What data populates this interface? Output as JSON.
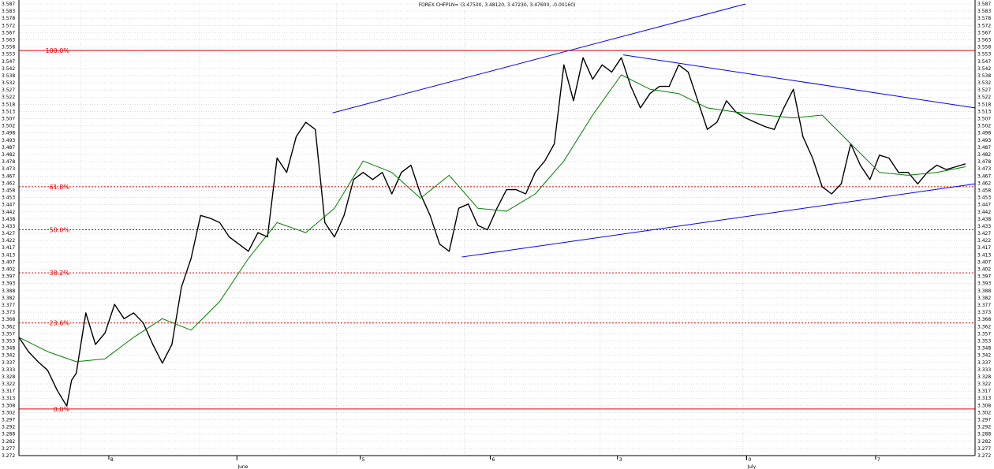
{
  "chart_data": {
    "type": "line",
    "title": "FOREX CHFPLN= (3.47500, 3.48120, 3.47230, 3.47600, -0.00160)",
    "xlabel": "",
    "ylabel": "",
    "ylim": [
      3.2725,
      3.5875
    ],
    "y_tick_step": 0.005,
    "grid": true,
    "x_tick_labels": [
      "June",
      "July"
    ],
    "x_minor_tick_labels": [
      "8",
      "5",
      "6",
      "3",
      "0",
      "7"
    ],
    "fibonacci_levels": [
      {
        "label": "100.0%",
        "value": 3.555,
        "style": "solid"
      },
      {
        "label": "61.8%",
        "value": 3.46,
        "style": "dotted"
      },
      {
        "label": "50.0%",
        "value": 3.43,
        "style": "dotted"
      },
      {
        "label": "38.2%",
        "value": 3.4,
        "style": "dotted"
      },
      {
        "label": "23.6%",
        "value": 3.365,
        "style": "dotted"
      },
      {
        "label": "0.0%",
        "value": 3.305,
        "style": "solid"
      }
    ],
    "x_range": [
      0,
      100
    ],
    "series": [
      {
        "color": "#000000",
        "x": [
          0,
          1,
          2,
          3,
          4,
          5,
          5.5,
          6,
          7,
          8,
          9,
          10,
          11,
          12,
          13,
          14,
          15,
          16,
          17,
          18,
          19,
          20,
          21,
          22,
          23,
          24,
          25,
          26,
          27,
          28,
          29,
          30,
          31,
          32,
          33,
          34,
          35,
          36,
          37,
          38,
          39,
          40,
          41,
          42,
          43,
          44,
          45,
          46,
          47,
          48,
          49,
          50,
          51,
          52,
          53,
          54,
          55,
          56,
          57,
          58,
          59,
          60,
          61,
          62,
          63,
          64,
          65,
          66,
          67,
          68,
          69,
          70,
          71,
          72,
          73,
          74,
          75,
          76,
          77,
          78,
          79,
          80,
          81,
          82,
          83,
          84,
          85,
          86,
          87,
          88,
          89,
          90,
          91,
          92,
          93,
          94,
          95,
          96,
          97,
          98,
          99
        ],
        "values": [
          3.355,
          3.345,
          3.338,
          3.332,
          3.318,
          3.307,
          3.325,
          3.33,
          3.372,
          3.35,
          3.358,
          3.378,
          3.368,
          3.372,
          3.365,
          3.35,
          3.337,
          3.35,
          3.39,
          3.41,
          3.44,
          3.438,
          3.435,
          3.425,
          3.42,
          3.415,
          3.428,
          3.425,
          3.48,
          3.47,
          3.495,
          3.505,
          3.5,
          3.435,
          3.425,
          3.44,
          3.465,
          3.47,
          3.465,
          3.47,
          3.455,
          3.47,
          3.475,
          3.455,
          3.44,
          3.42,
          3.415,
          3.445,
          3.448,
          3.433,
          3.43,
          3.445,
          3.458,
          3.458,
          3.455,
          3.47,
          3.478,
          3.49,
          3.545,
          3.52,
          3.55,
          3.535,
          3.545,
          3.54,
          3.55,
          3.53,
          3.515,
          3.525,
          3.53,
          3.53,
          3.545,
          3.54,
          3.52,
          3.5,
          3.505,
          3.52,
          3.512,
          3.508,
          3.505,
          3.502,
          3.5,
          3.515,
          3.528,
          3.495,
          3.48,
          3.46,
          3.455,
          3.462,
          3.49,
          3.475,
          3.465,
          3.482,
          3.48,
          3.47,
          3.47,
          3.462,
          3.47,
          3.475,
          3.472,
          3.474,
          3.476
        ]
      },
      {
        "color": "#008000",
        "x": [
          0,
          3,
          6,
          9,
          12,
          15,
          18,
          21,
          24,
          27,
          30,
          33,
          36,
          39,
          42,
          45,
          48,
          51,
          54,
          57,
          60,
          63,
          66,
          69,
          72,
          75,
          78,
          81,
          84,
          87,
          90,
          93,
          96,
          99
        ],
        "values": [
          3.355,
          3.345,
          3.338,
          3.34,
          3.355,
          3.368,
          3.36,
          3.38,
          3.41,
          3.435,
          3.428,
          3.445,
          3.478,
          3.47,
          3.452,
          3.468,
          3.445,
          3.443,
          3.455,
          3.478,
          3.51,
          3.538,
          3.528,
          3.525,
          3.515,
          3.512,
          3.51,
          3.508,
          3.51,
          3.49,
          3.47,
          3.468,
          3.47,
          3.474
        ]
      }
    ],
    "trendlines": [
      {
        "color": "#0000ff",
        "from": [
          32.8,
          3.5115
        ],
        "to": [
          76.0,
          3.5875
        ]
      },
      {
        "color": "#0000ff",
        "from": [
          46.3,
          3.411
        ],
        "to": [
          100.0,
          3.462
        ]
      },
      {
        "color": "#0000ff",
        "from": [
          63.2,
          3.552
        ],
        "to": [
          100.0,
          3.515
        ]
      }
    ]
  }
}
